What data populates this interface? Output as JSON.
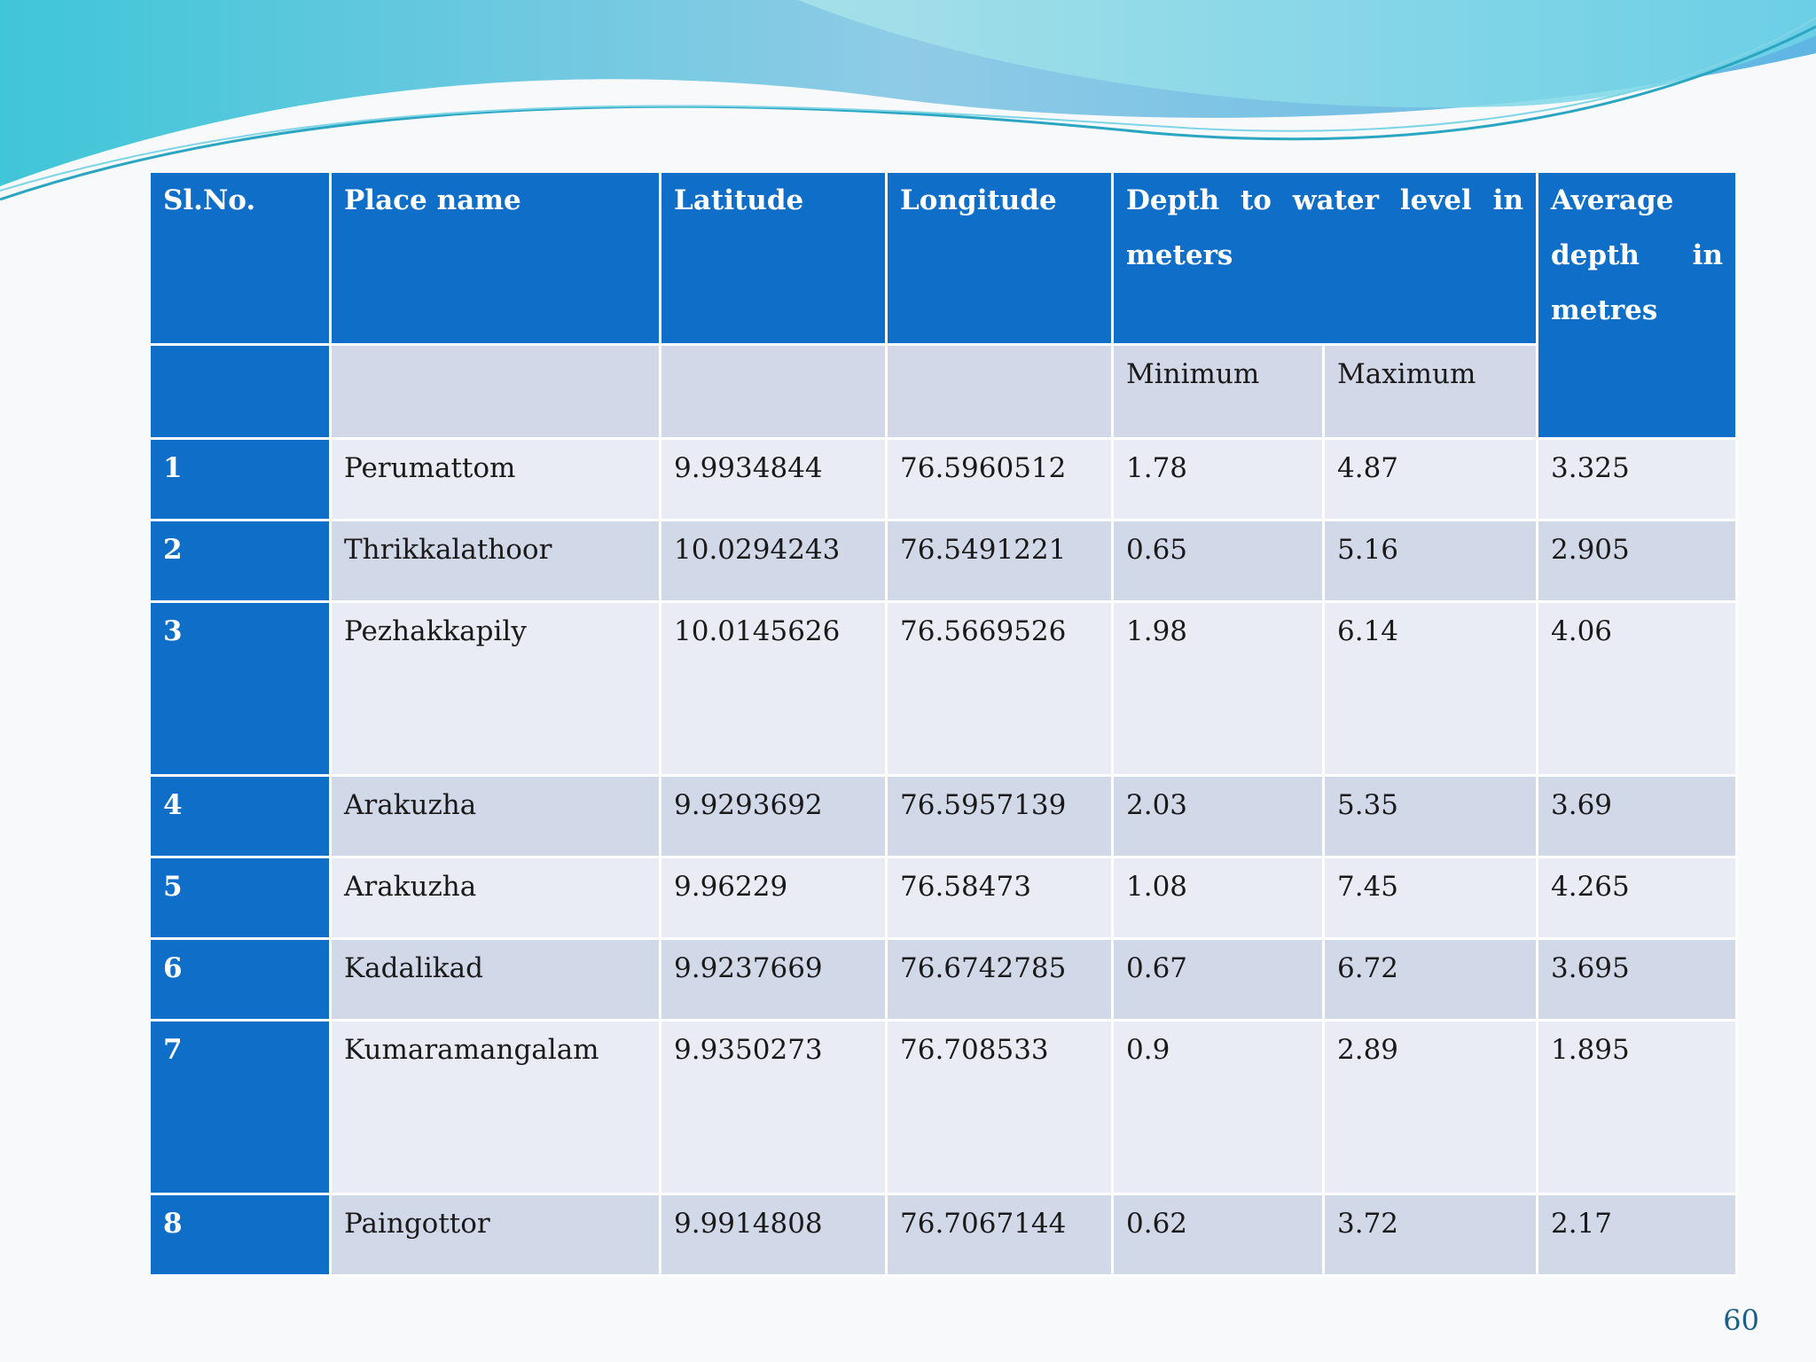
{
  "table": {
    "headers": {
      "sl_no": "Sl.No.",
      "place": "Place name",
      "latitude": "Latitude",
      "longitude": "Longitude",
      "depth": "Depth to water level in meters",
      "average": "Average depth in metres",
      "minimum": "Minimum",
      "maximum": "Maximum"
    },
    "rows": [
      {
        "sl": "1",
        "place": "Perumattom",
        "lat": "9.9934844",
        "lon": "76.5960512",
        "min": "1.78",
        "max": "4.87",
        "avg": "3.325"
      },
      {
        "sl": "2",
        "place": "Thrikkalathoor",
        "lat": "10.0294243",
        "lon": "76.5491221",
        "min": "0.65",
        "max": "5.16",
        "avg": "2.905"
      },
      {
        "sl": "3",
        "place": "Pezhakkapily",
        "lat": "10.0145626",
        "lon": "76.5669526",
        "min": "1.98",
        "max": "6.14",
        "avg": "4.06"
      },
      {
        "sl": "4",
        "place": "Arakuzha",
        "lat": "9.9293692",
        "lon": "76.5957139",
        "min": "2.03",
        "max": "5.35",
        "avg": "3.69"
      },
      {
        "sl": "5",
        "place": "Arakuzha",
        "lat": "9.96229",
        "lon": "76.58473",
        "min": "1.08",
        "max": "7.45",
        "avg": "4.265"
      },
      {
        "sl": "6",
        "place": "Kadalikad",
        "lat": "9.9237669",
        "lon": "76.6742785",
        "min": "0.67",
        "max": "6.72",
        "avg": "3.695"
      },
      {
        "sl": "7",
        "place": "Kumaramangalam",
        "lat": "9.9350273",
        "lon": "76.708533",
        "min": "0.9",
        "max": "2.89",
        "avg": "1.895"
      },
      {
        "sl": "8",
        "place": "Paingottor",
        "lat": "9.9914808",
        "lon": "76.7067144",
        "min": "0.62",
        "max": "3.72",
        "avg": "2.17"
      }
    ]
  },
  "page_number": "60",
  "colors": {
    "header_blue": "#0f6ec7",
    "row_light": "#e9ecf5",
    "row_dark": "#d1d8e8",
    "wave_teal": "#5fd0e0"
  }
}
